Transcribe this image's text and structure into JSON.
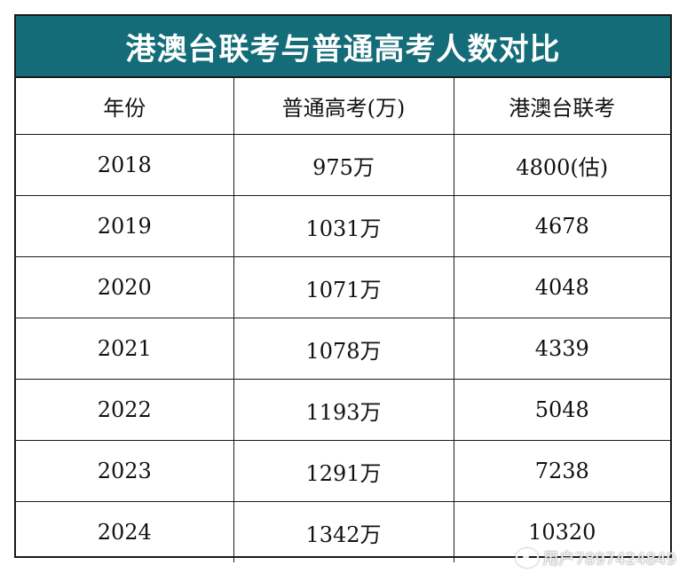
{
  "chart_data": {
    "type": "table",
    "title": "港澳台联考与普通高考人数对比",
    "columns": [
      "年份",
      "普通高考(万)",
      "港澳台联考"
    ],
    "rows": [
      {
        "year": "2018",
        "gaokao": "975万",
        "lianka": "4800(估)"
      },
      {
        "year": "2019",
        "gaokao": "1031万",
        "lianka": "4678"
      },
      {
        "year": "2020",
        "gaokao": "1071万",
        "lianka": "4048"
      },
      {
        "year": "2021",
        "gaokao": "1078万",
        "lianka": "4339"
      },
      {
        "year": "2022",
        "gaokao": "1193万",
        "lianka": "5048"
      },
      {
        "year": "2023",
        "gaokao": "1291万",
        "lianka": "7238"
      },
      {
        "year": "2024",
        "gaokao": "1342万",
        "lianka": "10320"
      }
    ]
  },
  "watermark": {
    "text": "用户7897424849",
    "icon": "weibo-logo-icon"
  },
  "colors": {
    "title_bg": "#146c79",
    "title_fg": "#ffffff",
    "border": "#1a1a1a"
  }
}
